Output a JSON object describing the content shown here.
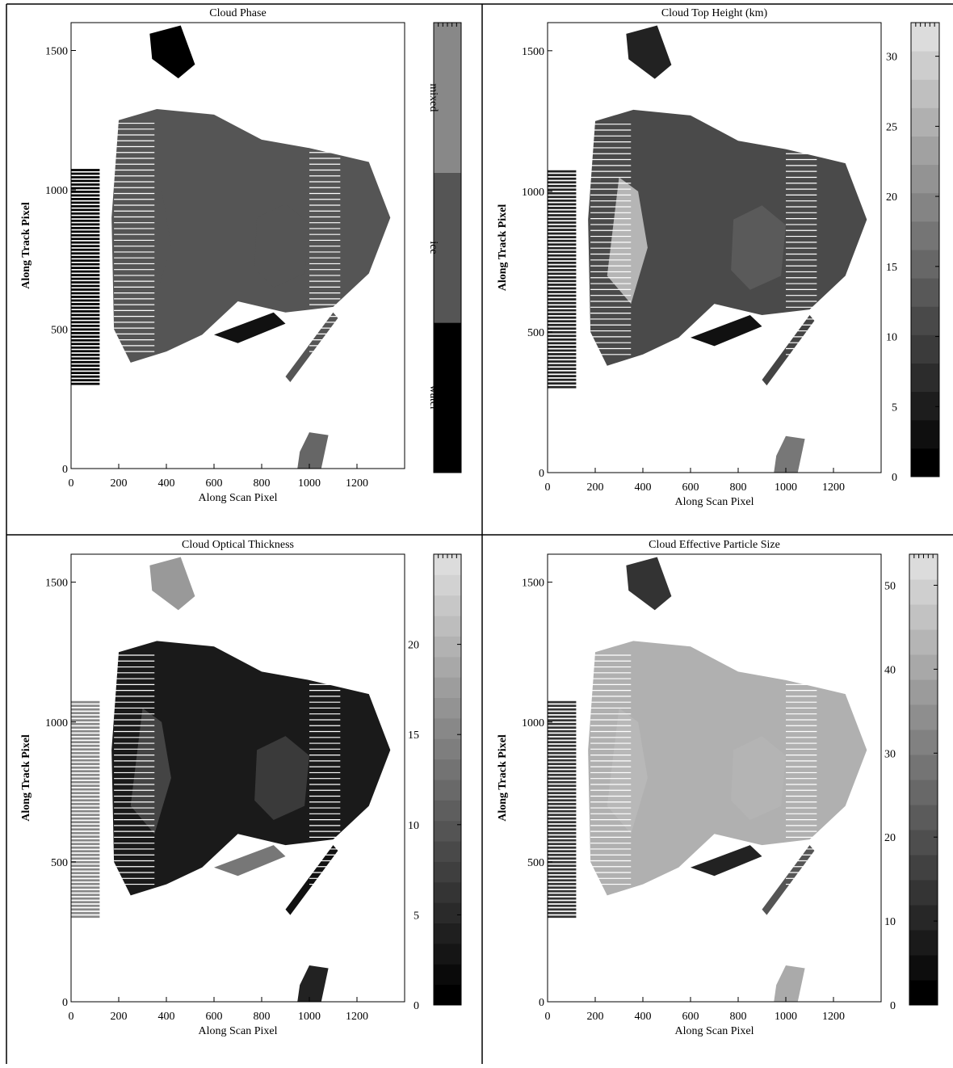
{
  "chart_data": [
    {
      "type": "image",
      "title": "Cloud Phase",
      "xlabel": "Along Scan Pixel",
      "ylabel": "Along Track Pixel",
      "xlim": [
        0,
        1400
      ],
      "ylim": [
        0,
        1600
      ],
      "xticks": [
        0,
        200,
        400,
        600,
        800,
        1000,
        1200
      ],
      "yticks": [
        0,
        500,
        1000,
        1500
      ],
      "colorbar": {
        "categories": [
          "water",
          "ice",
          "mixed"
        ],
        "colors": [
          "#000000",
          "#555555",
          "#888888"
        ]
      }
    },
    {
      "type": "image",
      "title": "Cloud Top Height (km)",
      "xlabel": "Along Scan Pixel",
      "ylabel": "Along Track Pixel",
      "xlim": [
        0,
        1400
      ],
      "ylim": [
        0,
        1600
      ],
      "xticks": [
        0,
        200,
        400,
        600,
        800,
        1000,
        1200
      ],
      "yticks": [
        0,
        500,
        1000,
        1500
      ],
      "colorbar": {
        "clim": [
          0,
          32.4
        ],
        "ticks": [
          0,
          5,
          10,
          15,
          20,
          25,
          30
        ],
        "levels": 16
      }
    },
    {
      "type": "image",
      "title": "Cloud Optical Thickness",
      "xlabel": "Along Scan Pixel",
      "ylabel": "Along Track Pixel",
      "xlim": [
        0,
        1400
      ],
      "ylim": [
        0,
        1600
      ],
      "xticks": [
        0,
        200,
        400,
        600,
        800,
        1000,
        1200
      ],
      "yticks": [
        0,
        500,
        1000,
        1500
      ],
      "colorbar": {
        "clim": [
          0,
          25
        ],
        "ticks": [
          0,
          5,
          10,
          15,
          20
        ],
        "levels": 22
      }
    },
    {
      "type": "image",
      "title": "Cloud Effective Particle Size",
      "xlabel": "Along Scan Pixel",
      "ylabel": "Along Track Pixel",
      "xlim": [
        0,
        1400
      ],
      "ylim": [
        0,
        1600
      ],
      "xticks": [
        0,
        200,
        400,
        600,
        800,
        1000,
        1200
      ],
      "yticks": [
        0,
        500,
        1000,
        1500
      ],
      "colorbar": {
        "clim": [
          0,
          53.7
        ],
        "ticks": [
          0,
          10,
          20,
          30,
          40,
          50
        ],
        "levels": 18
      }
    }
  ]
}
